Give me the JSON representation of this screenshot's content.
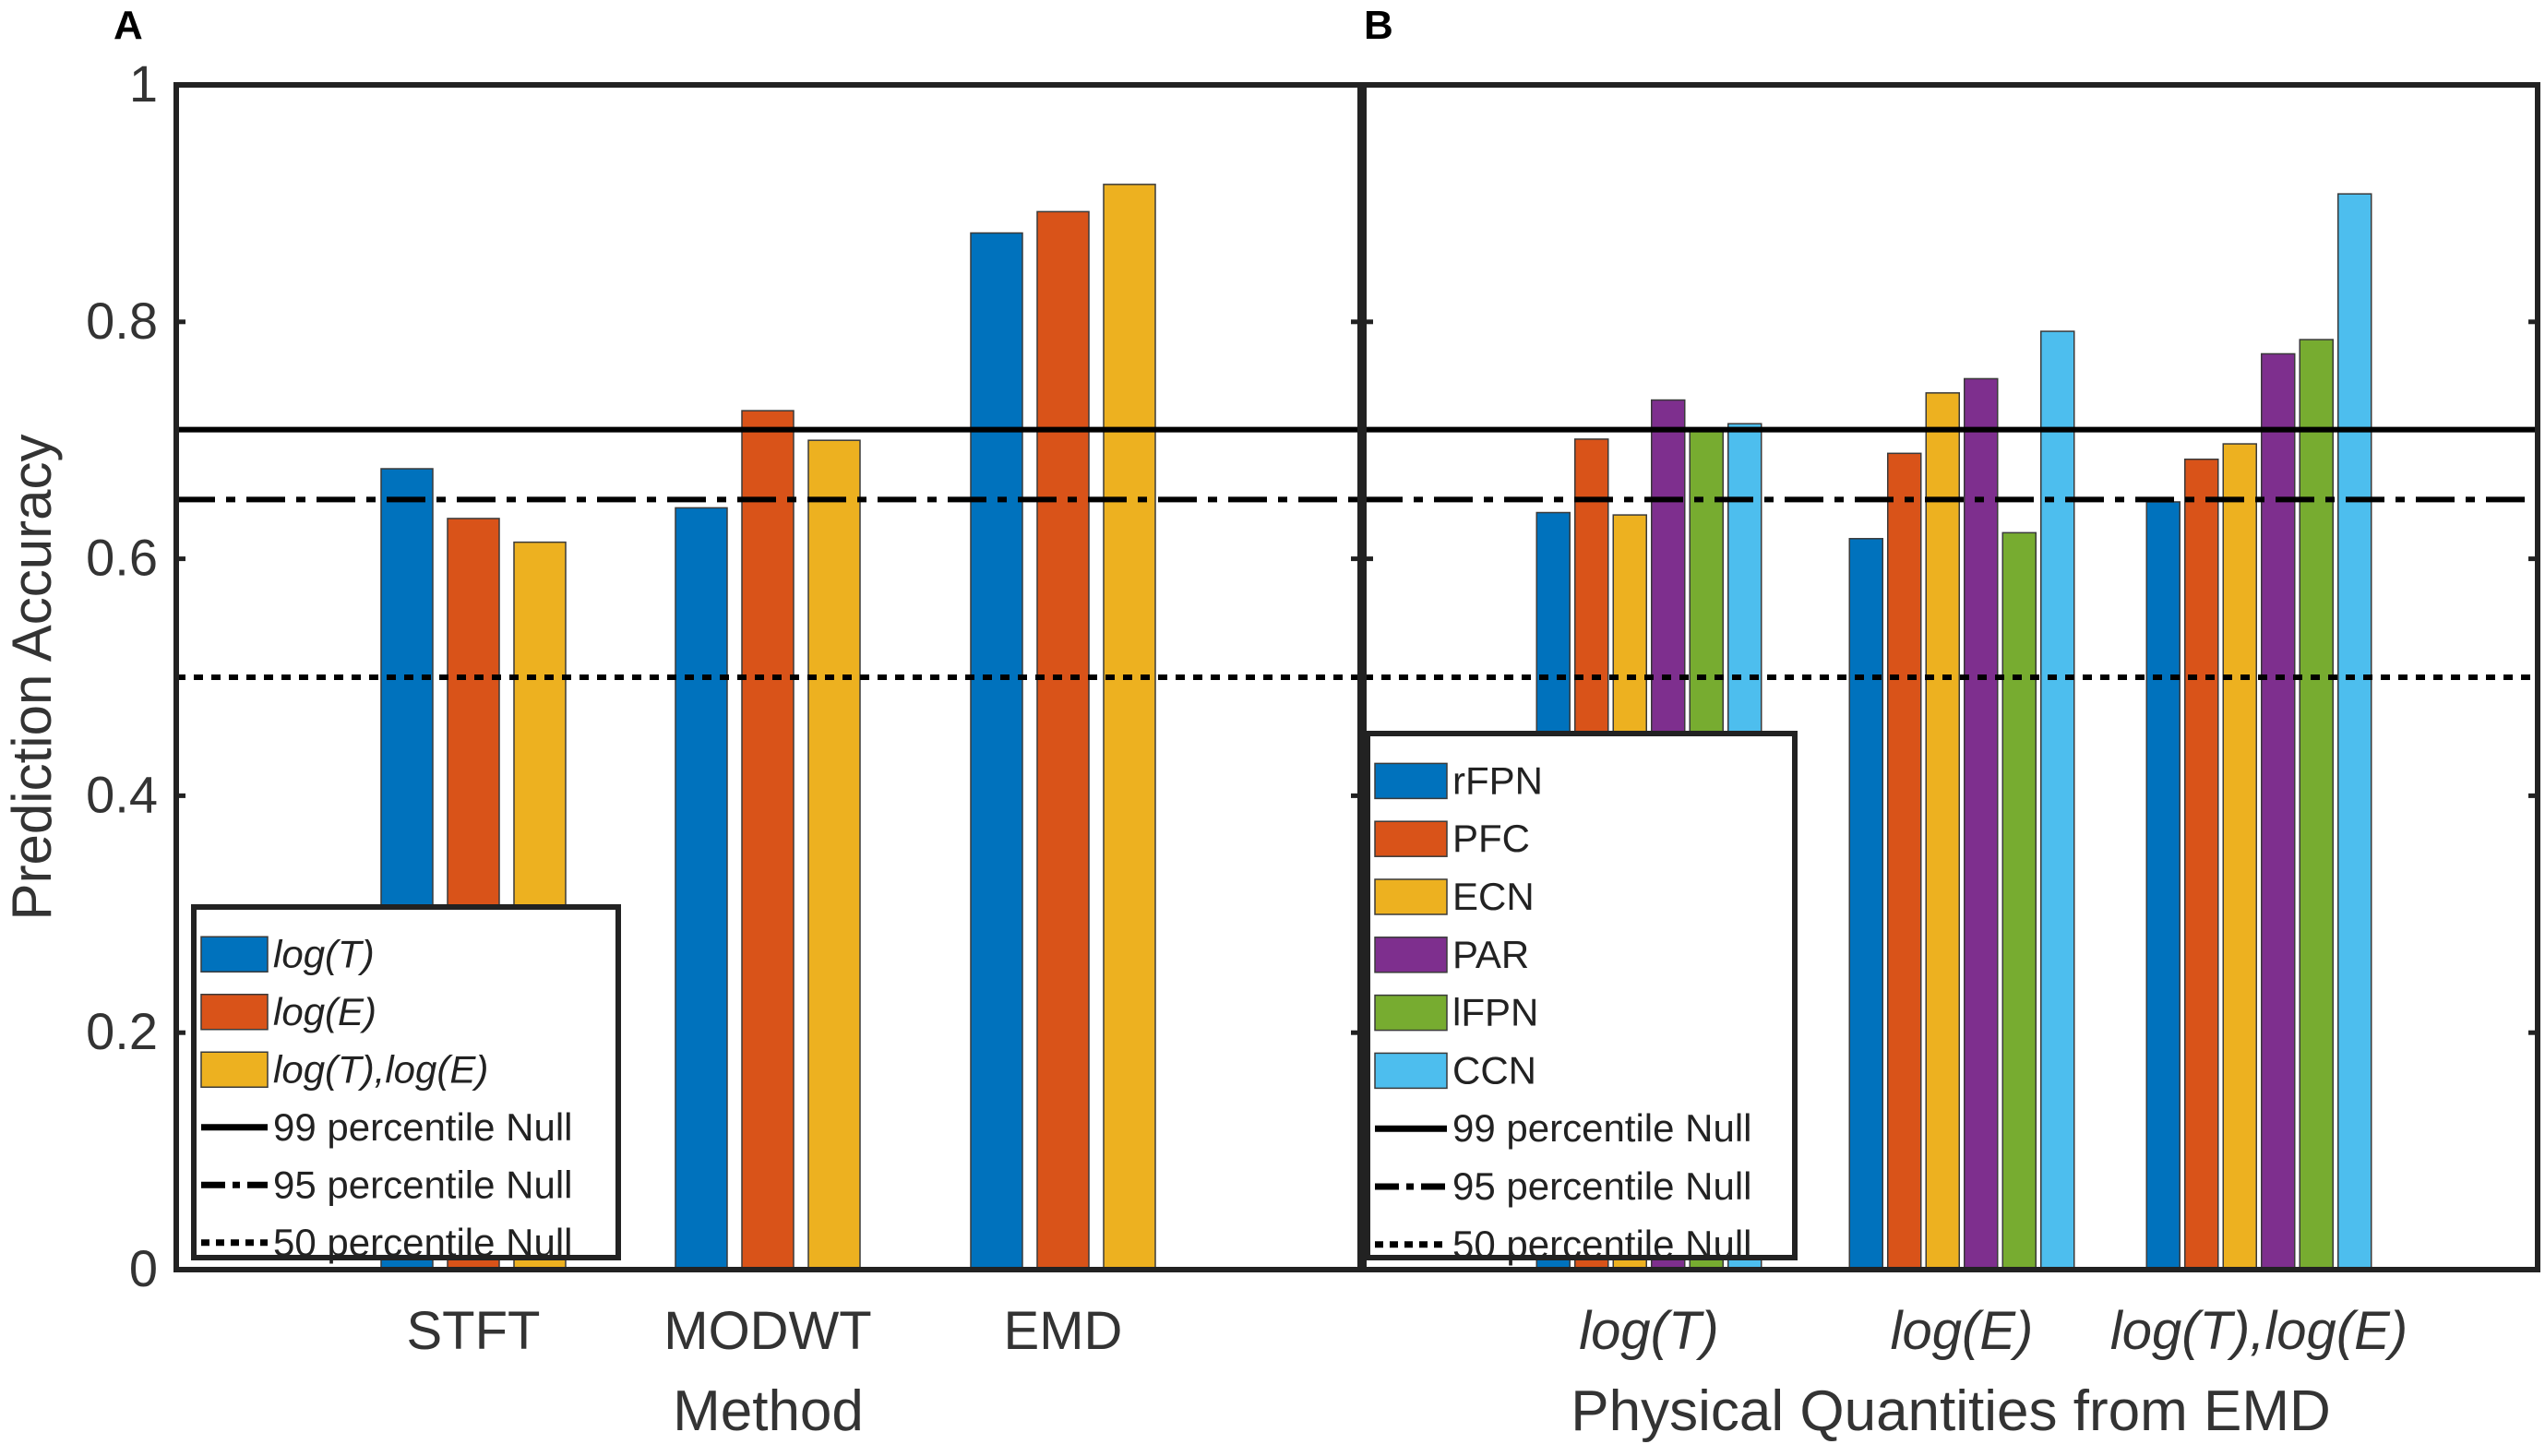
{
  "chart_data": [
    {
      "panel": "A",
      "type": "bar",
      "title": "",
      "xlabel": "Method",
      "ylabel": "Prediction Accuracy",
      "ylim": [
        0,
        1
      ],
      "yticks": [
        "0",
        "0.2",
        "0.4",
        "0.6",
        "0.8",
        "1"
      ],
      "categories": [
        "STFT",
        "MODWT",
        "EMD"
      ],
      "italic_categories": false,
      "series": [
        {
          "name": "log(T)",
          "color": "#0072BD",
          "values": [
            0.676,
            0.643,
            0.875
          ]
        },
        {
          "name": "log(E)",
          "color": "#D95319",
          "values": [
            0.634,
            0.725,
            0.893
          ]
        },
        {
          "name": "log(T),log(E)",
          "color": "#EDB120",
          "values": [
            0.614,
            0.7,
            0.916
          ]
        }
      ],
      "reference_lines": [
        {
          "name": "99 percentile Null",
          "value": 0.709,
          "style": "solid"
        },
        {
          "name": "95 percentile Null",
          "value": 0.65,
          "style": "dashdot"
        },
        {
          "name": "50 percentile Null",
          "value": 0.5,
          "style": "dotted"
        }
      ],
      "legend_position": "bottom-left",
      "legend_italic_series": true
    },
    {
      "panel": "B",
      "type": "bar",
      "title": "",
      "xlabel": "Physical Quantities from EMD",
      "ylabel": "",
      "ylim": [
        0,
        1
      ],
      "categories": [
        "log(T)",
        "log(E)",
        "log(T),log(E)"
      ],
      "italic_categories": true,
      "series": [
        {
          "name": "rFPN",
          "color": "#0072BD",
          "values": [
            0.639,
            0.617,
            0.648
          ]
        },
        {
          "name": "PFC",
          "color": "#D95319",
          "values": [
            0.701,
            0.689,
            0.684
          ]
        },
        {
          "name": "ECN",
          "color": "#EDB120",
          "values": [
            0.637,
            0.74,
            0.697
          ]
        },
        {
          "name": "PAR",
          "color": "#7E2F8E",
          "values": [
            0.734,
            0.752,
            0.773
          ]
        },
        {
          "name": "lFPN",
          "color": "#77AC30",
          "values": [
            0.71,
            0.622,
            0.785
          ]
        },
        {
          "name": "CCN",
          "color": "#4DBEEE",
          "values": [
            0.714,
            0.792,
            0.908
          ]
        }
      ],
      "reference_lines": [
        {
          "name": "99 percentile Null",
          "value": 0.709,
          "style": "solid"
        },
        {
          "name": "95 percentile Null",
          "value": 0.65,
          "style": "dashdot"
        },
        {
          "name": "50 percentile Null",
          "value": 0.5,
          "style": "dotted"
        }
      ],
      "legend_position": "bottom-left",
      "legend_italic_series": false
    }
  ]
}
